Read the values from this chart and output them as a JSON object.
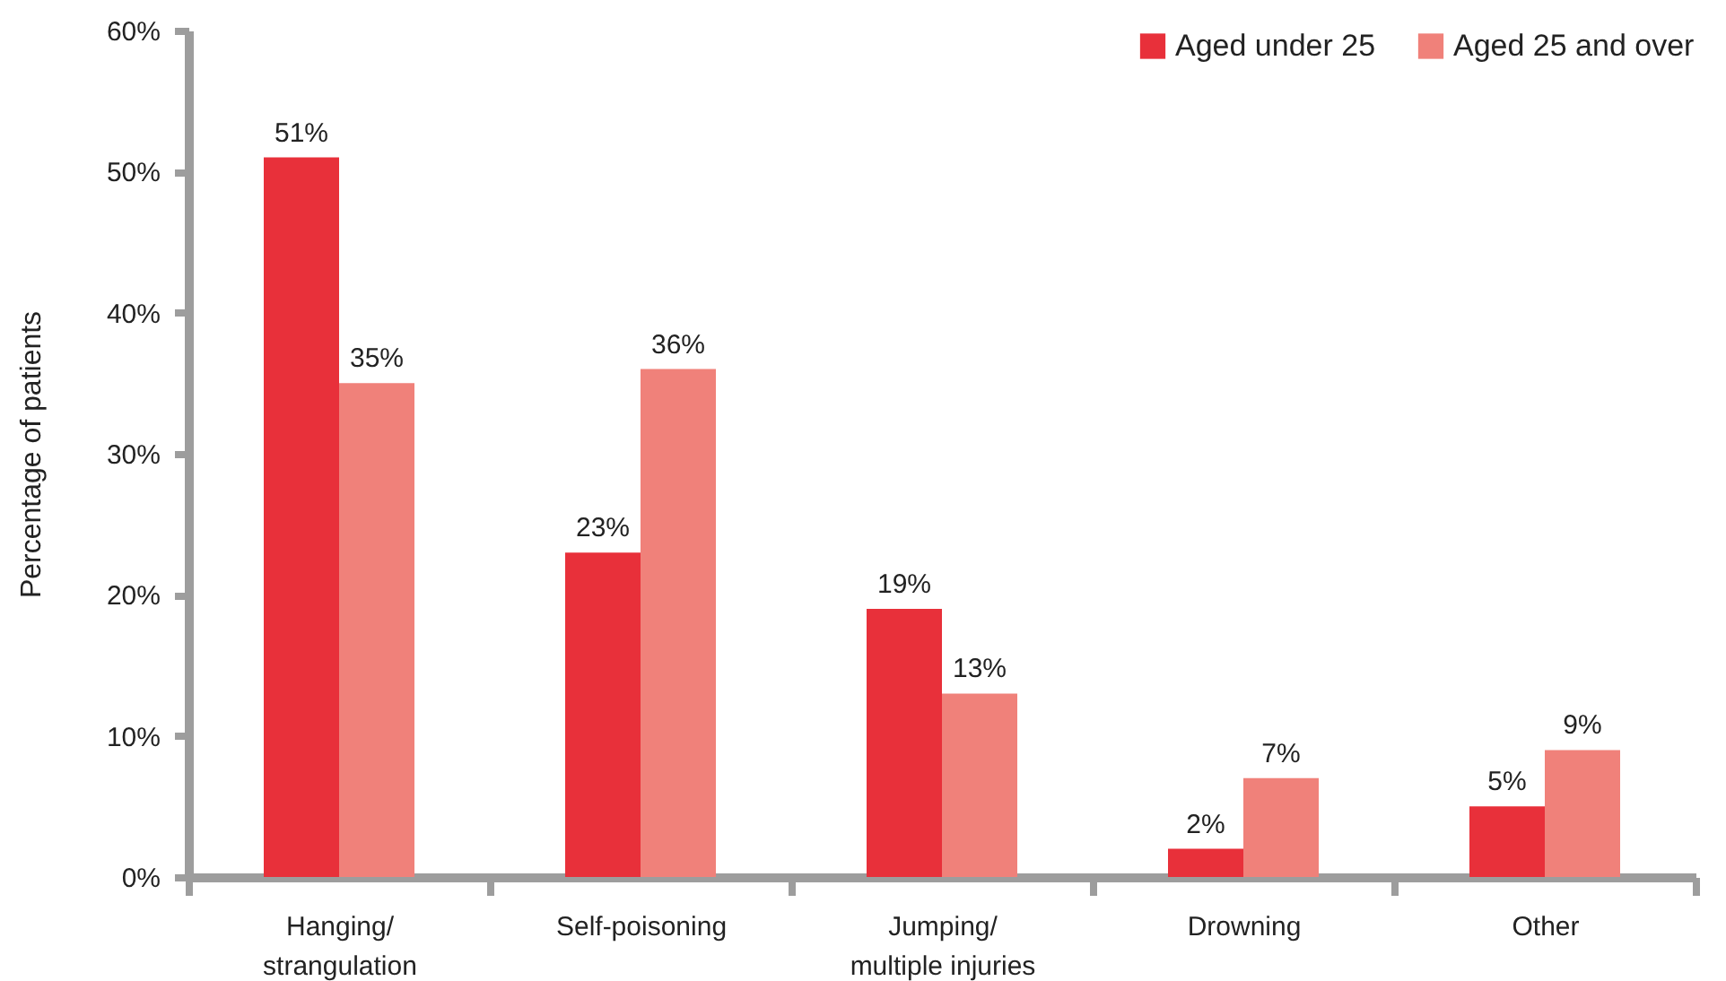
{
  "chart_data": {
    "type": "bar",
    "ylabel": "Percentage of patients",
    "categories": [
      "Hanging/\nstrangulation",
      "Self-poisoning",
      "Jumping/\nmultiple injuries",
      "Drowning",
      "Other"
    ],
    "series": [
      {
        "name": "Aged under 25",
        "color": "#e8303a",
        "values": [
          51,
          23,
          19,
          2,
          5
        ],
        "value_labels": [
          "51%",
          "23%",
          "19%",
          "2%",
          "5%"
        ]
      },
      {
        "name": "Aged 25 and over",
        "color": "#f0817a",
        "values": [
          35,
          36,
          13,
          7,
          9
        ],
        "value_labels": [
          "35%",
          "36%",
          "13%",
          "7%",
          "9%"
        ]
      }
    ],
    "ylim": [
      0,
      60
    ],
    "yticks": [
      {
        "value": 0,
        "label": "0%"
      },
      {
        "value": 10,
        "label": "10%"
      },
      {
        "value": 20,
        "label": "20%"
      },
      {
        "value": 30,
        "label": "30%"
      },
      {
        "value": 40,
        "label": "40%"
      },
      {
        "value": 50,
        "label": "50%"
      },
      {
        "value": 60,
        "label": "60%"
      }
    ],
    "legend": "top right"
  }
}
